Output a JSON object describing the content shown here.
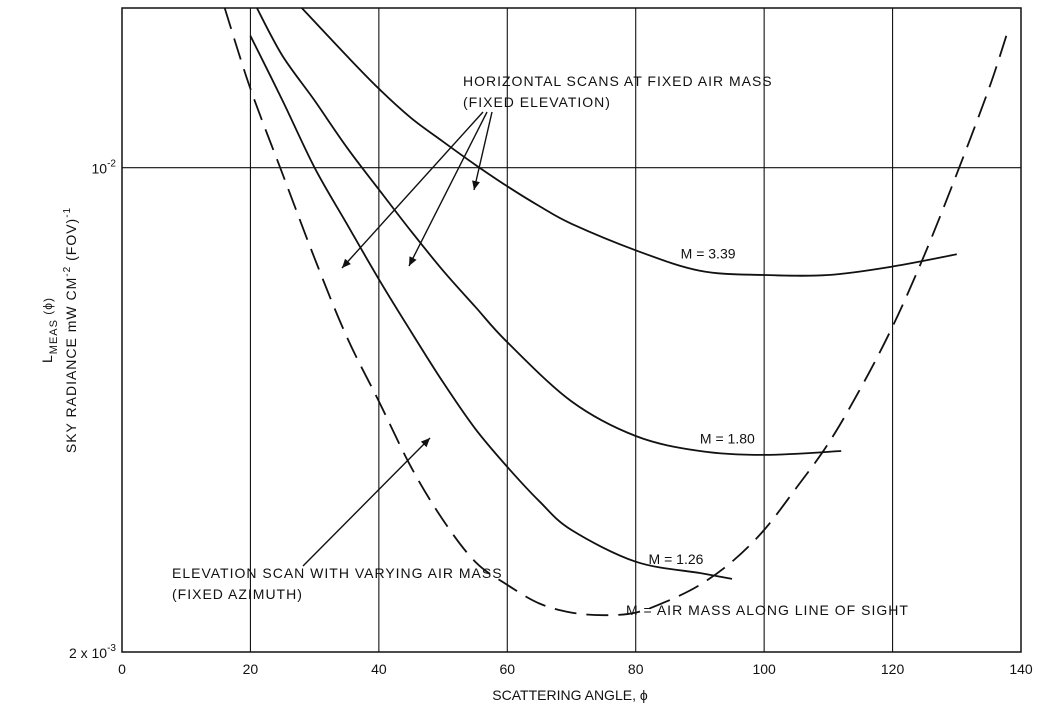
{
  "chart_data": {
    "type": "line",
    "title": "",
    "xlabel": "SCATTERING ANGLE, ϕ",
    "ylabel_line1": "L",
    "ylabel_line1_sub": "MEAS",
    "ylabel_line1_arg": " (ϕ)",
    "ylabel_line2": "SKY RADIANCE   mW CM",
    "ylabel_line2_sup": "-2",
    "ylabel_line2_tail": " (FOV)",
    "ylabel_line2_sup2": "-1",
    "x_scale": "linear",
    "y_scale": "log",
    "xlim": [
      0,
      140
    ],
    "ylim": [
      0.002,
      0.017
    ],
    "x_ticks": [
      0,
      20,
      40,
      60,
      80,
      100,
      120,
      140
    ],
    "x_tick_labels": [
      "0",
      "20",
      "40",
      "60",
      "80",
      "100",
      "120",
      "140"
    ],
    "y_tick_labels": [
      {
        "value": 0.01,
        "mantissa": "10",
        "exponent": "-2"
      },
      {
        "value": 0.002,
        "mantissa": "2 x 10",
        "exponent": "-3"
      }
    ],
    "grid_x": [
      20,
      40,
      60,
      80,
      100,
      120
    ],
    "grid_y": [
      0.01
    ],
    "series": [
      {
        "name": "M = 3.39",
        "style": "solid",
        "x": [
          28,
          35,
          40,
          45,
          50,
          55,
          60,
          65,
          70,
          80,
          90,
          100,
          110,
          120,
          130
        ],
        "y": [
          0.017,
          0.0145,
          0.013,
          0.0118,
          0.0109,
          0.0101,
          0.0094,
          0.0088,
          0.0083,
          0.0076,
          0.0071,
          0.007,
          0.007,
          0.0072,
          0.0075
        ]
      },
      {
        "name": "M = 1.80",
        "style": "solid",
        "x": [
          21,
          25,
          30,
          35,
          40,
          45,
          50,
          55,
          60,
          70,
          80,
          90,
          100,
          112
        ],
        "y": [
          0.017,
          0.0145,
          0.0125,
          0.0107,
          0.0093,
          0.0081,
          0.0071,
          0.0063,
          0.0056,
          0.0046,
          0.0041,
          0.0039,
          0.00385,
          0.0039
        ]
      },
      {
        "name": "M = 1.26",
        "style": "solid",
        "x": [
          20,
          25,
          30,
          35,
          40,
          45,
          50,
          55,
          60,
          65,
          70,
          80,
          90,
          95
        ],
        "y": [
          0.0155,
          0.0125,
          0.01,
          0.0083,
          0.0069,
          0.0058,
          0.0049,
          0.0042,
          0.0037,
          0.0033,
          0.003,
          0.0027,
          0.0026,
          0.00255
        ]
      },
      {
        "name": "",
        "style": "dashed",
        "x": [
          16,
          20,
          25,
          30,
          35,
          40,
          45,
          50,
          55,
          60,
          65,
          70,
          75,
          80,
          85,
          90,
          95,
          100,
          105,
          110,
          115,
          120,
          125,
          130,
          135,
          138
        ],
        "y": [
          0.017,
          0.013,
          0.0098,
          0.0074,
          0.0057,
          0.0046,
          0.0037,
          0.0031,
          0.0027,
          0.0025,
          0.00235,
          0.00228,
          0.00226,
          0.00228,
          0.00237,
          0.0025,
          0.0027,
          0.003,
          0.00345,
          0.004,
          0.0048,
          0.0059,
          0.0075,
          0.0098,
          0.013,
          0.0158
        ]
      }
    ],
    "curve_labels": [
      {
        "text": "M = 3.39",
        "x": 87,
        "y": 0.0074
      },
      {
        "text": "M = 1.80",
        "x": 90,
        "y": 0.004
      },
      {
        "text": "M = 1.26",
        "x": 82,
        "y": 0.00268
      }
    ],
    "annotations": {
      "horizontal_scans_line1": "HORIZONTAL SCANS AT FIXED AIR MASS",
      "horizontal_scans_line2": "(FIXED ELEVATION)",
      "elevation_scan_line1": "ELEVATION SCAN WITH VARYING AIR MASS",
      "elevation_scan_line2": "(FIXED AZIMUTH)",
      "air_mass_note": "M = AIR MASS ALONG LINE OF SIGHT"
    },
    "legend": "none",
    "colors": {
      "line": "#111111",
      "grid": "#111111",
      "background": "#ffffff"
    }
  }
}
